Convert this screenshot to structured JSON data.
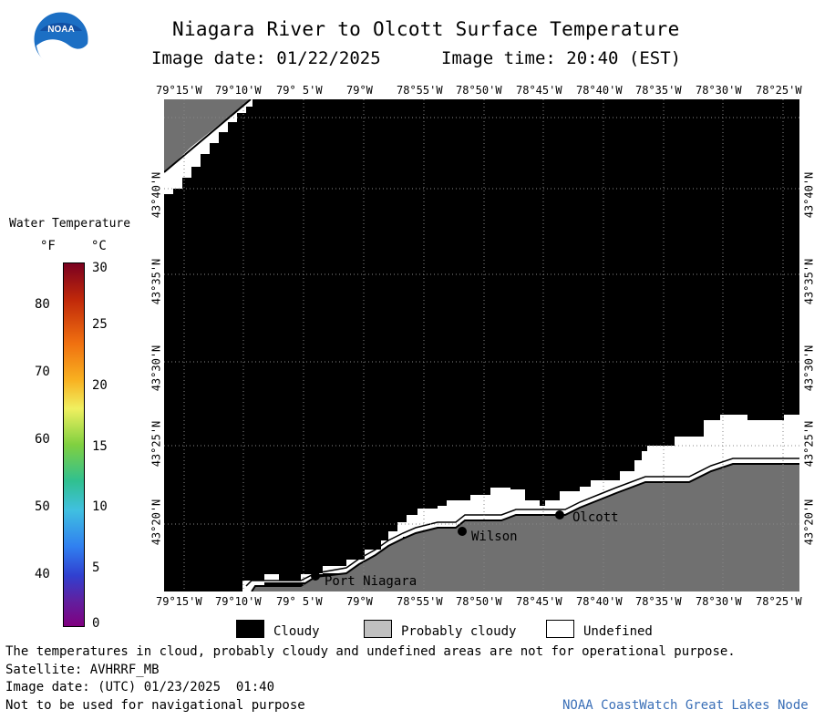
{
  "header": {
    "title": "Niagara River to Olcott Surface Temperature",
    "image_date": "Image date: 01/22/2025",
    "image_time": "Image time: 20:40 (EST)"
  },
  "logo": {
    "text": "NOAA",
    "icon": "noaa-logo"
  },
  "longitude_ticks": [
    "79°15'W",
    "79°10'W",
    "79° 5'W",
    "79°W",
    "78°55'W",
    "78°50'W",
    "78°45'W",
    "78°40'W",
    "78°35'W",
    "78°30'W",
    "78°25'W"
  ],
  "latitude_ticks": [
    "43°40'N",
    "43°35'N",
    "43°30'N",
    "43°25'N",
    "43°20'N"
  ],
  "color_scale": {
    "title": "Water Temperature",
    "unit_f": "°F",
    "unit_c": "°C",
    "fahrenheit_labels": [
      "80",
      "70",
      "60",
      "50",
      "40"
    ],
    "celsius_labels": [
      "30",
      "25",
      "20",
      "15",
      "10",
      "5",
      "0"
    ],
    "colors": [
      "#7a0020",
      "#c0280a",
      "#f07010",
      "#f8b020",
      "#f0f060",
      "#80d040",
      "#30c090",
      "#40c0e0",
      "#3080f0",
      "#3040d0",
      "#6020a0",
      "#800080"
    ]
  },
  "places": [
    {
      "name": "Port Niagara"
    },
    {
      "name": "Wilson"
    },
    {
      "name": "Olcott"
    }
  ],
  "legend": [
    {
      "label": "Cloudy",
      "color": "#000000"
    },
    {
      "label": "Probably cloudy",
      "color": "#c0c0c0"
    },
    {
      "label": "Undefined",
      "color": "#ffffff"
    }
  ],
  "footer": {
    "note": "The temperatures in cloud, probably cloudy and undefined areas are not for operational purpose.",
    "satellite": "Satellite: AVHRRF_MB",
    "utc": "Image date: (UTC) 01/23/2025  01:40",
    "nav": "Not to be used for navigational purpose",
    "credit": "NOAA CoastWatch Great Lakes Node"
  }
}
